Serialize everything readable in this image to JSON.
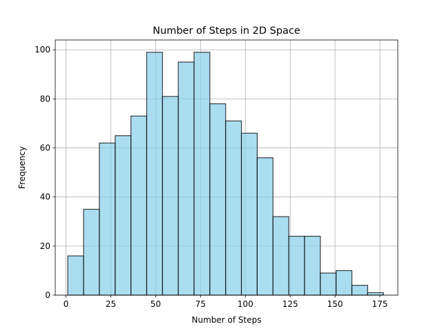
{
  "chart_data": {
    "type": "bar",
    "title": "Number of Steps in 2D Space",
    "xlabel": "Number of Steps",
    "ylabel": "Frequency",
    "bin_edges": [
      1.0,
      9.8,
      18.6,
      27.4,
      36.2,
      45.0,
      53.8,
      62.6,
      71.4,
      80.2,
      89.0,
      97.8,
      106.6,
      115.4,
      124.2,
      133.0,
      141.8,
      150.6,
      159.4,
      168.2,
      177.0
    ],
    "values": [
      16,
      35,
      62,
      65,
      73,
      99,
      81,
      95,
      99,
      78,
      71,
      66,
      56,
      32,
      24,
      24,
      9,
      10,
      4,
      1
    ],
    "xlim": [
      -6.0,
      185.0
    ],
    "ylim": [
      0,
      104.0
    ],
    "xticks": [
      0,
      25,
      50,
      75,
      100,
      125,
      150,
      175
    ],
    "yticks": [
      0,
      20,
      40,
      60,
      80,
      100
    ],
    "grid": true,
    "colors": {
      "bar_fill": "#87ceeb",
      "bar_edge": "#000000",
      "grid": "#b0b0b0"
    }
  }
}
